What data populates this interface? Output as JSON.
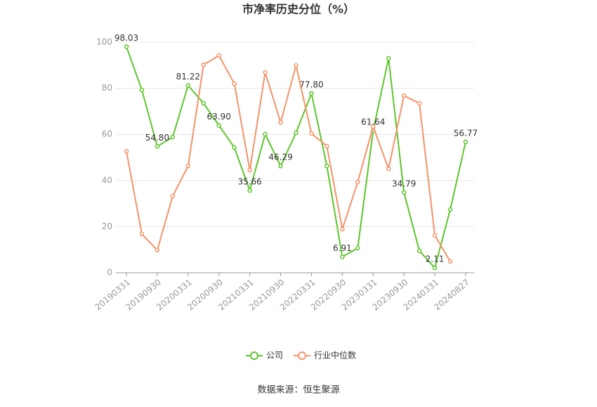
{
  "chart_data": {
    "type": "line",
    "title": "市净率历史分位（%）",
    "source": "数据来源：恒生聚源",
    "categories": [
      "20190331",
      null,
      "20190930",
      null,
      "20200331",
      null,
      "20200930",
      null,
      "20210331",
      null,
      "20210930",
      null,
      "20220331",
      null,
      "20220930",
      null,
      "20230331",
      null,
      "20230930",
      null,
      "20240331",
      null,
      "20240827"
    ],
    "series": [
      {
        "name": "公司",
        "color": "#5ec52d",
        "values": [
          98.03,
          79.3,
          54.8,
          58.8,
          81.22,
          73.5,
          63.9,
          54.3,
          35.66,
          60.1,
          46.29,
          60.7,
          77.8,
          46.3,
          6.91,
          10.7,
          61.64,
          93.0,
          34.79,
          9.5,
          2.11,
          27.4,
          56.77
        ],
        "value_labels": [
          "98.03",
          null,
          "54.80",
          null,
          "81.22",
          null,
          "63.90",
          null,
          "35.66",
          null,
          "46.29",
          null,
          "77.80",
          null,
          "6.91",
          null,
          "61.64",
          null,
          "34.79",
          null,
          "2.11",
          null,
          "56.77"
        ]
      },
      {
        "name": "行业中位数",
        "color": "#f5936a",
        "values": [
          52.7,
          16.8,
          9.8,
          33.2,
          46.3,
          90.2,
          94.2,
          82.0,
          44.5,
          86.9,
          65.2,
          89.9,
          60.4,
          54.9,
          18.9,
          39.3,
          63.4,
          45.1,
          76.8,
          73.5,
          16.2,
          4.9,
          null
        ]
      }
    ],
    "ylim": [
      0,
      100
    ],
    "yticks": [
      0,
      20,
      40,
      60,
      80,
      100
    ],
    "grid": true,
    "legend": "bottom"
  }
}
